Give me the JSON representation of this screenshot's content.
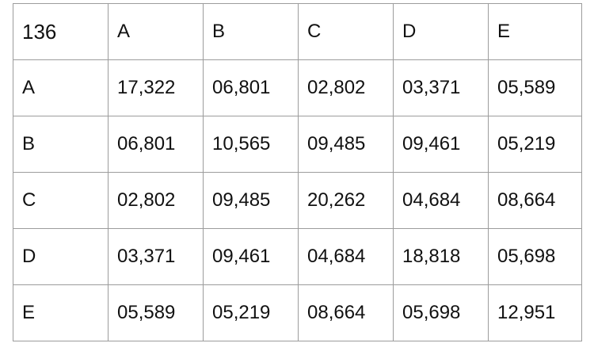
{
  "table": {
    "corner": "136",
    "column_headers": [
      "A",
      "B",
      "C",
      "D",
      "E"
    ],
    "rows": [
      {
        "label": "A",
        "cells": [
          "17,322",
          "06,801",
          "02,802",
          "03,371",
          "05,589"
        ]
      },
      {
        "label": "B",
        "cells": [
          "06,801",
          "10,565",
          "09,485",
          "09,461",
          "05,219"
        ]
      },
      {
        "label": "C",
        "cells": [
          "02,802",
          "09,485",
          "20,262",
          "04,684",
          "08,664"
        ]
      },
      {
        "label": "D",
        "cells": [
          "03,371",
          "09,461",
          "04,684",
          "18,818",
          "05,698"
        ]
      },
      {
        "label": "E",
        "cells": [
          "05,589",
          "05,219",
          "08,664",
          "05,698",
          "12,951"
        ]
      }
    ]
  }
}
